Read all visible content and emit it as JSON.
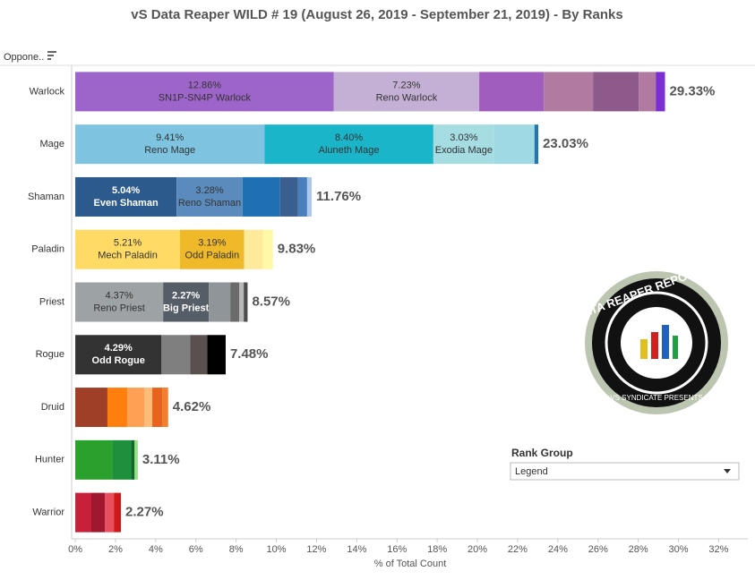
{
  "chart_data": {
    "type": "stacked-bar-horizontal",
    "title": "vS Data Reaper WILD # 19 (August 26, 2019 - September 21, 2019) - By Ranks",
    "row_header": "Oppone..",
    "x_label": "% of Total Count",
    "xlim": [
      -0.18,
      33.45
    ],
    "xticks": [
      {
        "value": 0,
        "label": "0%"
      },
      {
        "value": 2,
        "label": "2%"
      },
      {
        "value": 4,
        "label": "4%"
      },
      {
        "value": 6,
        "label": "6%"
      },
      {
        "value": 8,
        "label": "8%"
      },
      {
        "value": 10,
        "label": "10%"
      },
      {
        "value": 12,
        "label": "12%"
      },
      {
        "value": 14,
        "label": "14%"
      },
      {
        "value": 16,
        "label": "16%"
      },
      {
        "value": 18,
        "label": "18%"
      },
      {
        "value": 20,
        "label": "20%"
      },
      {
        "value": 22,
        "label": "22%"
      },
      {
        "value": 24,
        "label": "24%"
      },
      {
        "value": 26,
        "label": "26%"
      },
      {
        "value": 28,
        "label": "28%"
      },
      {
        "value": 30,
        "label": "30%"
      },
      {
        "value": 32,
        "label": "32%"
      }
    ],
    "bars": [
      {
        "category": "Warlock",
        "total_label": "29.33%",
        "segments": [
          {
            "value": 12.86,
            "value_label": "12.86%",
            "name": "SN1P-SN4P Warlock",
            "color": "#9d65c9"
          },
          {
            "value": 7.23,
            "value_label": "7.23%",
            "name": "Reno Warlock",
            "color": "#c5b0d5"
          },
          {
            "value": 3.21,
            "color": "#a05dbd"
          },
          {
            "value": 2.45,
            "color": "#b07aa1"
          },
          {
            "value": 2.27,
            "color": "#8e5a8b"
          },
          {
            "value": 0.85,
            "color": "#b07aa1"
          },
          {
            "value": 0.46,
            "color": "#7b2fd0"
          }
        ]
      },
      {
        "category": "Mage",
        "total_label": "23.03%",
        "segments": [
          {
            "value": 9.41,
            "value_label": "9.41%",
            "name": "Reno Mage",
            "color": "#7ec3e0"
          },
          {
            "value": 8.4,
            "value_label": "8.40%",
            "name": "Aluneth Mage",
            "color": "#1bb5c9"
          },
          {
            "value": 3.03,
            "value_label": "3.03%",
            "name": "Exodia Mage",
            "color": "#a6dde3"
          },
          {
            "value": 2.0,
            "color": "#9fd9e4"
          },
          {
            "value": 0.19,
            "color": "#1f77b4"
          }
        ]
      },
      {
        "category": "Shaman",
        "total_label": "11.76%",
        "segments": [
          {
            "value": 5.04,
            "value_label": "5.04%",
            "name": "Even Shaman",
            "color": "#2c5a8c"
          },
          {
            "value": 3.28,
            "value_label": "3.28%",
            "name": "Reno Shaman",
            "color": "#5b8bbd"
          },
          {
            "value": 1.87,
            "color": "#1f6fb4"
          },
          {
            "value": 0.89,
            "color": "#3a5f8f"
          },
          {
            "value": 0.45,
            "color": "#4a7fbd"
          },
          {
            "value": 0.23,
            "color": "#aec7e8"
          }
        ]
      },
      {
        "category": "Paladin",
        "total_label": "9.83%",
        "segments": [
          {
            "value": 5.21,
            "value_label": "5.21%",
            "name": "Mech Paladin",
            "color": "#ffdb66"
          },
          {
            "value": 3.19,
            "value_label": "3.19%",
            "name": "Odd Paladin",
            "color": "#f0b92a"
          },
          {
            "value": 0.94,
            "color": "#ffe99a"
          },
          {
            "value": 0.49,
            "color": "#fff8a6"
          }
        ]
      },
      {
        "category": "Priest",
        "total_label": "8.57%",
        "segments": [
          {
            "value": 4.37,
            "value_label": "4.37%",
            "name": "Reno Priest",
            "color": "#9da2a5"
          },
          {
            "value": 2.27,
            "value_label": "2.27%",
            "name": "Big Priest",
            "color": "#555e66"
          },
          {
            "value": 1.07,
            "color": "#8f9598"
          },
          {
            "value": 0.45,
            "color": "#6b6b6b"
          },
          {
            "value": 0.22,
            "color": "#b8b8b8"
          },
          {
            "value": 0.19,
            "color": "#4d4d4d"
          }
        ]
      },
      {
        "category": "Rogue",
        "total_label": "7.48%",
        "segments": [
          {
            "value": 4.29,
            "value_label": "4.29%",
            "name": "Odd Rogue",
            "color": "#333333"
          },
          {
            "value": 1.43,
            "color": "#7f7f7f"
          },
          {
            "value": 0.85,
            "color": "#5a5050"
          },
          {
            "value": 0.91,
            "color": "#000000"
          }
        ]
      },
      {
        "category": "Druid",
        "total_label": "4.62%",
        "segments": [
          {
            "value": 1.6,
            "color": "#a03f28"
          },
          {
            "value": 0.98,
            "color": "#ff7f0e"
          },
          {
            "value": 0.85,
            "color": "#ffa055"
          },
          {
            "value": 0.4,
            "color": "#ffbb78"
          },
          {
            "value": 0.49,
            "color": "#e8641e"
          },
          {
            "value": 0.3,
            "color": "#f08030"
          }
        ]
      },
      {
        "category": "Hunter",
        "total_label": "3.11%",
        "segments": [
          {
            "value": 1.83,
            "color": "#2ca02c"
          },
          {
            "value": 0.94,
            "color": "#1e8f3a"
          },
          {
            "value": 0.18,
            "color": "#0f6a2a"
          },
          {
            "value": 0.16,
            "color": "#98df8a"
          }
        ]
      },
      {
        "category": "Warrior",
        "total_label": "2.27%",
        "segments": [
          {
            "value": 0.8,
            "color": "#c8203a"
          },
          {
            "value": 0.67,
            "color": "#a01830"
          },
          {
            "value": 0.45,
            "color": "#e85060"
          },
          {
            "value": 0.35,
            "color": "#d01818"
          }
        ]
      }
    ],
    "filter_title": "Rank Group",
    "filter_value": "Legend",
    "logo_text": "DATA REAPER REPORT",
    "logo_subtext": "VS SYNDICATE PRESENTS"
  }
}
